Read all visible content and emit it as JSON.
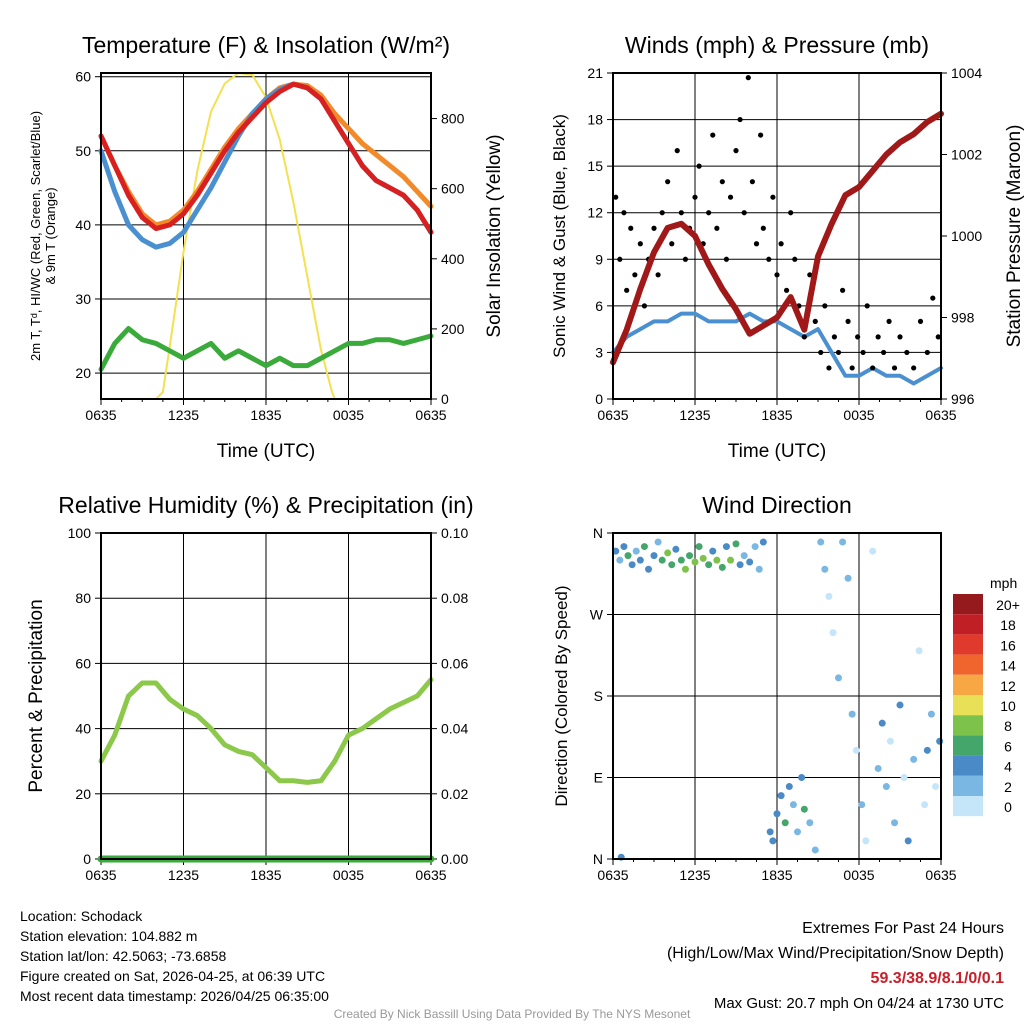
{
  "chart_data": [
    {
      "type": "line",
      "title": "Temperature (F) & Insolation (W/m²)",
      "xlabel": "Time (UTC)",
      "ylabel": "2m T, Td, HI/WC (Red, Green, Scarlet/Blue) & 9m T (Orange)",
      "ylabel_line1": "2m T, Tᵈ, HI/WC (Red, Green, Scarlet/Blue)",
      "ylabel_line2": "& 9m T (Orange)",
      "y2label": "Solar Insolation (Yellow)",
      "xticks": [
        "0635",
        "1235",
        "1835",
        "0035",
        "0635"
      ],
      "ylim": [
        16.5,
        60.5
      ],
      "yticks": [
        20,
        30,
        40,
        50,
        60
      ],
      "y2lim": [
        0,
        930
      ],
      "y2ticks": [
        0,
        200,
        400,
        600,
        800
      ],
      "x_hours": [
        0,
        1,
        2,
        3,
        4,
        5,
        6,
        7,
        8,
        9,
        10,
        11,
        12,
        13,
        14,
        15,
        16,
        17,
        18,
        19,
        20,
        21,
        22,
        23,
        24
      ],
      "series": [
        {
          "name": "9m T",
          "color": "#f28a2a",
          "values": [
            52,
            48,
            44.5,
            41.5,
            40,
            40.5,
            42,
            44.5,
            47.5,
            50.5,
            53,
            55,
            57,
            58.5,
            59,
            58.8,
            57.5,
            55,
            53,
            51,
            49.5,
            48,
            46.5,
            44.5,
            42.5
          ]
        },
        {
          "name": "HI/WC",
          "color": "#4a90d0",
          "values": [
            50,
            44.5,
            40,
            38,
            37,
            37.5,
            39,
            42,
            45,
            48.5,
            52,
            55,
            57,
            58.3,
            59,
            58.5,
            57,
            54,
            51,
            48,
            46,
            45,
            44,
            42,
            39
          ]
        },
        {
          "name": "2m T",
          "color": "#d82020",
          "values": [
            52,
            48,
            44,
            41,
            39.5,
            40,
            41.5,
            44,
            47,
            50,
            52.5,
            54.5,
            56.5,
            58,
            59,
            58.5,
            57,
            54,
            51,
            48,
            46,
            45,
            44,
            42,
            39
          ]
        },
        {
          "name": "Td",
          "color": "#3aaa3a",
          "values": [
            20.5,
            24,
            26,
            24.5,
            24,
            23,
            22,
            23,
            24,
            22,
            23,
            22,
            21,
            22,
            21,
            21,
            22,
            23,
            24,
            24,
            24.5,
            24.5,
            24,
            24.5,
            25
          ]
        }
      ],
      "solar": {
        "name": "Insolation",
        "color": "#f5e050",
        "x_hours": [
          0,
          4,
          4.5,
          5,
          6,
          7,
          8,
          9,
          10,
          11,
          12,
          13,
          14,
          15,
          16,
          16.8,
          17,
          24
        ],
        "values": [
          0,
          0,
          20,
          150,
          420,
          650,
          820,
          900,
          930,
          925,
          860,
          740,
          560,
          350,
          140,
          20,
          0,
          0
        ]
      }
    },
    {
      "type": "line",
      "title": "Winds (mph) & Pressure (mb)",
      "xlabel": "Time (UTC)",
      "ylabel": "Sonic Wind & Gust (Blue, Black)",
      "y2label": "Station Pressure (Maroon)",
      "xticks": [
        "0635",
        "1235",
        "1835",
        "0035",
        "0635"
      ],
      "ylim": [
        0,
        21
      ],
      "yticks": [
        0,
        3,
        6,
        9,
        12,
        15,
        18,
        21
      ],
      "y2lim": [
        996,
        1004
      ],
      "y2ticks": [
        996,
        998,
        1000,
        1002,
        1004
      ],
      "x_hours": [
        0,
        1,
        2,
        3,
        4,
        5,
        6,
        7,
        8,
        9,
        10,
        11,
        12,
        13,
        14,
        15,
        16,
        17,
        18,
        19,
        20,
        21,
        22,
        23,
        24
      ],
      "wind": {
        "color": "#4a90d0",
        "values": [
          3,
          4,
          4.5,
          5,
          5,
          5.5,
          5.5,
          5,
          5,
          5,
          5.5,
          5,
          5,
          4.5,
          4,
          4.5,
          3,
          1.5,
          1.5,
          2,
          1.5,
          1.5,
          1,
          1.5,
          2
        ]
      },
      "pressure": {
        "color": "#a01818",
        "values": [
          996.9,
          997.7,
          998.7,
          999.6,
          1000.2,
          1000.3,
          1000,
          999.3,
          998.7,
          998.2,
          997.6,
          997.8,
          998,
          998.5,
          997.7,
          999.5,
          1000.3,
          1001,
          1001.2,
          1001.6,
          1002,
          1002.3,
          1002.5,
          1002.8,
          1003
        ]
      },
      "gusts": {
        "color": "#000",
        "points": [
          [
            0.2,
            13
          ],
          [
            0.5,
            9
          ],
          [
            0.8,
            12
          ],
          [
            1,
            7
          ],
          [
            1.3,
            11
          ],
          [
            1.6,
            8
          ],
          [
            2,
            10
          ],
          [
            2.3,
            6
          ],
          [
            2.6,
            9
          ],
          [
            3,
            11
          ],
          [
            3.3,
            8
          ],
          [
            3.6,
            12
          ],
          [
            4,
            14
          ],
          [
            4.3,
            10
          ],
          [
            4.7,
            16
          ],
          [
            5,
            12
          ],
          [
            5.3,
            9
          ],
          [
            5.6,
            11
          ],
          [
            6,
            13
          ],
          [
            6.3,
            15
          ],
          [
            6.6,
            10
          ],
          [
            7,
            12
          ],
          [
            7.3,
            17
          ],
          [
            7.6,
            11
          ],
          [
            8,
            14
          ],
          [
            8.3,
            9
          ],
          [
            8.6,
            13
          ],
          [
            9,
            16
          ],
          [
            9.3,
            18
          ],
          [
            9.6,
            12
          ],
          [
            9.9,
            20.7
          ],
          [
            10.2,
            14
          ],
          [
            10.5,
            10
          ],
          [
            10.8,
            17
          ],
          [
            11,
            11
          ],
          [
            11.4,
            9
          ],
          [
            11.7,
            13
          ],
          [
            12,
            8
          ],
          [
            12.3,
            10
          ],
          [
            12.7,
            7
          ],
          [
            13,
            12
          ],
          [
            13.3,
            9
          ],
          [
            13.6,
            6
          ],
          [
            14,
            4
          ],
          [
            14.4,
            8
          ],
          [
            14.8,
            5
          ],
          [
            15.2,
            3
          ],
          [
            15.5,
            6
          ],
          [
            15.8,
            2
          ],
          [
            16.2,
            4
          ],
          [
            16.5,
            3
          ],
          [
            16.8,
            7
          ],
          [
            17.2,
            5
          ],
          [
            17.5,
            2
          ],
          [
            17.9,
            4
          ],
          [
            18.3,
            3
          ],
          [
            18.6,
            6
          ],
          [
            19,
            2
          ],
          [
            19.4,
            4
          ],
          [
            19.8,
            3
          ],
          [
            20.2,
            5
          ],
          [
            20.6,
            2
          ],
          [
            21,
            4
          ],
          [
            21.5,
            3
          ],
          [
            22,
            2
          ],
          [
            22.5,
            5
          ],
          [
            23,
            3
          ],
          [
            23.4,
            6.5
          ],
          [
            23.8,
            4
          ]
        ]
      }
    },
    {
      "type": "line",
      "title": "Relative Humidity (%) & Precipitation (in)",
      "ylabel": "Percent & Precipitation",
      "xticks": [
        "0635",
        "1235",
        "1835",
        "0035",
        "0635"
      ],
      "ylim": [
        0,
        100
      ],
      "yticks": [
        0,
        20,
        40,
        60,
        80,
        100
      ],
      "y2lim": [
        0,
        0.1
      ],
      "y2ticks": [
        "0.00",
        "0.02",
        "0.04",
        "0.06",
        "0.08",
        "0.10"
      ],
      "x_hours": [
        0,
        1,
        2,
        3,
        4,
        5,
        6,
        7,
        8,
        9,
        10,
        11,
        12,
        13,
        14,
        15,
        16,
        17,
        18,
        19,
        20,
        21,
        22,
        23,
        24
      ],
      "rh": {
        "color": "#8cc84a",
        "values": [
          30,
          38,
          50,
          54,
          54,
          49,
          46,
          44,
          40,
          35,
          33,
          32,
          28,
          24,
          24,
          23.5,
          24,
          30,
          38,
          40,
          43,
          46,
          48,
          50,
          55
        ]
      },
      "precip": {
        "color": "#3aaa3a",
        "values": [
          0,
          0,
          0,
          0,
          0,
          0,
          0,
          0,
          0,
          0,
          0,
          0,
          0,
          0,
          0,
          0,
          0,
          0,
          0,
          0,
          0,
          0,
          0,
          0,
          0
        ]
      }
    },
    {
      "type": "scatter",
      "title": "Wind Direction",
      "ylabel": "Direction (Colored By Speed)",
      "xticks": [
        "0635",
        "1235",
        "1835",
        "0035",
        "0635"
      ],
      "ylim": [
        0,
        360
      ],
      "yticks": [
        "N",
        "E",
        "S",
        "W",
        "N"
      ],
      "legend": {
        "title": "mph",
        "placement": "right",
        "labels": [
          "20+",
          "18",
          "16",
          "14",
          "12",
          "10",
          "8",
          "6",
          "4",
          "2",
          "0"
        ],
        "colors": [
          "#951a1d",
          "#c11f26",
          "#e03a2c",
          "#f0642d",
          "#f8a745",
          "#e8e057",
          "#7dc24b",
          "#45a66b",
          "#4a8ac6",
          "#7ab7e3",
          "#c5e6f8"
        ]
      },
      "points": [
        [
          0.2,
          340,
          4
        ],
        [
          0.5,
          330,
          2
        ],
        [
          0.8,
          345,
          4
        ],
        [
          1.1,
          335,
          6
        ],
        [
          1.4,
          325,
          4
        ],
        [
          1.7,
          340,
          2
        ],
        [
          2,
          330,
          4
        ],
        [
          2.3,
          345,
          6
        ],
        [
          2.6,
          320,
          4
        ],
        [
          3,
          335,
          4
        ],
        [
          3.3,
          350,
          2
        ],
        [
          3.6,
          330,
          6
        ],
        [
          4,
          338,
          8
        ],
        [
          4.3,
          325,
          6
        ],
        [
          4.6,
          342,
          4
        ],
        [
          5,
          330,
          6
        ],
        [
          5.3,
          320,
          8
        ],
        [
          5.6,
          335,
          6
        ],
        [
          6,
          328,
          8
        ],
        [
          6.3,
          345,
          6
        ],
        [
          6.6,
          332,
          8
        ],
        [
          7,
          325,
          6
        ],
        [
          7.3,
          340,
          4
        ],
        [
          7.6,
          330,
          8
        ],
        [
          8,
          322,
          6
        ],
        [
          8.3,
          345,
          4
        ],
        [
          8.6,
          330,
          8
        ],
        [
          9,
          348,
          6
        ],
        [
          9.3,
          325,
          4
        ],
        [
          9.6,
          335,
          2
        ],
        [
          10,
          328,
          4
        ],
        [
          10.4,
          345,
          2
        ],
        [
          10.7,
          320,
          2
        ],
        [
          11,
          350,
          4
        ],
        [
          11.5,
          30,
          4
        ],
        [
          11.7,
          20,
          4
        ],
        [
          12,
          50,
          4
        ],
        [
          12.3,
          70,
          4
        ],
        [
          12.6,
          40,
          6
        ],
        [
          12.9,
          80,
          4
        ],
        [
          13.2,
          60,
          2
        ],
        [
          13.5,
          30,
          2
        ],
        [
          13.8,
          90,
          4
        ],
        [
          14,
          55,
          6
        ],
        [
          14.4,
          40,
          2
        ],
        [
          14.8,
          10,
          2
        ],
        [
          15.2,
          350,
          2
        ],
        [
          15.5,
          320,
          2
        ],
        [
          15.8,
          290,
          0
        ],
        [
          16.1,
          250,
          0
        ],
        [
          16.5,
          200,
          2
        ],
        [
          16.8,
          350,
          2
        ],
        [
          17.2,
          310,
          2
        ],
        [
          17.5,
          160,
          2
        ],
        [
          17.8,
          120,
          0
        ],
        [
          18.2,
          60,
          2
        ],
        [
          18.5,
          20,
          0
        ],
        [
          19,
          340,
          0
        ],
        [
          19.4,
          100,
          2
        ],
        [
          19.7,
          150,
          4
        ],
        [
          20,
          80,
          2
        ],
        [
          20.3,
          130,
          0
        ],
        [
          20.6,
          40,
          2
        ],
        [
          21,
          170,
          4
        ],
        [
          21.3,
          90,
          0
        ],
        [
          21.6,
          20,
          4
        ],
        [
          22,
          110,
          2
        ],
        [
          22.4,
          230,
          0
        ],
        [
          22.8,
          60,
          0
        ],
        [
          23,
          120,
          4
        ],
        [
          23.3,
          160,
          2
        ],
        [
          23.6,
          80,
          0
        ],
        [
          23.9,
          130,
          4
        ],
        [
          0.6,
          2,
          4
        ]
      ]
    }
  ],
  "footer_left": {
    "location": "Location: Schodack",
    "elevation": "Station elevation: 104.882 m",
    "latlon": "Station lat/lon: 42.5063; -73.6858",
    "created": "Figure created on Sat, 2026-04-25, at 06:39 UTC",
    "recent": "Most recent data timestamp: 2026/04/25 06:35:00"
  },
  "footer_right": {
    "title": "Extremes For Past 24 Hours",
    "subtitle": "(High/Low/Max Wind/Precipitation/Snow Depth)",
    "values": "59.3/38.9/8.1/0/0.1",
    "gust": "Max Gust: 20.7 mph On 04/24 at 1730 UTC"
  },
  "credit": "Created By Nick Bassill Using Data Provided By The NYS Mesonet"
}
